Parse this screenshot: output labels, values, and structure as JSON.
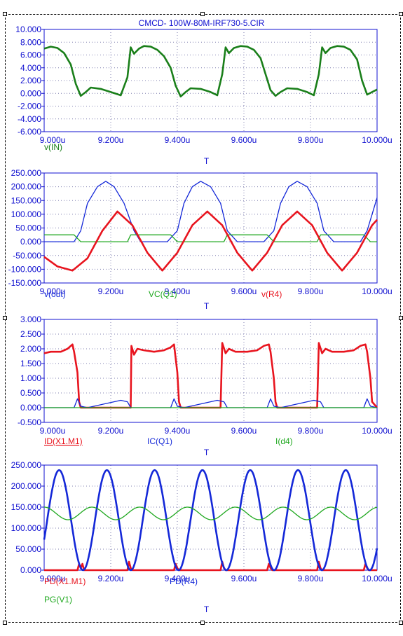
{
  "title": "CMCD- 100W-80M-IRF730-5.CIR",
  "colors": {
    "green": "#1a7f1a",
    "red": "#e8141e",
    "blue": "#1428d8",
    "lightgreen": "#1fa81f",
    "axis": "#1010d0",
    "grid": "#8080b0"
  },
  "chart_data": [
    {
      "type": "line",
      "title": "",
      "xlabel": "T",
      "ylabel": "",
      "xlim": [
        9.0,
        10.0
      ],
      "ylim": [
        -6.0,
        10.0
      ],
      "x_ticks": [
        "9.000u",
        "9.200u",
        "9.400u",
        "9.600u",
        "9.800u",
        "10.000u"
      ],
      "y_ticks": [
        "10.000",
        "8.000",
        "6.000",
        "4.000",
        "2.000",
        "0.000",
        "-2.000",
        "-4.000",
        "-6.000"
      ],
      "grid": true,
      "legend": [
        "v(IN)"
      ],
      "series": [
        {
          "name": "v(IN)",
          "color": "green",
          "x": [
            9.0,
            9.02,
            9.04,
            9.06,
            9.08,
            9.095,
            9.11,
            9.125,
            9.14,
            9.17,
            9.2,
            9.23,
            9.25,
            9.26,
            9.27,
            9.285,
            9.3,
            9.32,
            9.34,
            9.36,
            9.38,
            9.395,
            9.41,
            9.425,
            9.44,
            9.47,
            9.5,
            9.52,
            9.535,
            9.545,
            9.555,
            9.57,
            9.59,
            9.61,
            9.63,
            9.65,
            9.665,
            9.68,
            9.695,
            9.71,
            9.73,
            9.76,
            9.79,
            9.81,
            9.825,
            9.835,
            9.845,
            9.86,
            9.88,
            9.9,
            9.92,
            9.94,
            9.955,
            9.97,
            9.985,
            10.0
          ],
          "y": [
            7.0,
            7.3,
            7.1,
            6.3,
            4.5,
            1.5,
            -0.4,
            0.2,
            0.9,
            0.7,
            0.2,
            -0.3,
            2.5,
            7.2,
            6.2,
            7.0,
            7.4,
            7.3,
            6.8,
            5.8,
            4.0,
            1.2,
            -0.5,
            0.2,
            0.8,
            0.7,
            0.2,
            -0.3,
            3.0,
            7.2,
            6.3,
            7.1,
            7.4,
            7.3,
            6.8,
            5.5,
            3.0,
            0.5,
            -0.4,
            0.2,
            0.8,
            0.7,
            0.2,
            -0.3,
            3.0,
            7.2,
            6.3,
            7.1,
            7.4,
            7.3,
            6.8,
            5.3,
            2.0,
            -0.2,
            0.2,
            0.6
          ]
        }
      ]
    },
    {
      "type": "line",
      "title": "",
      "xlabel": "T",
      "ylabel": "",
      "xlim": [
        9.0,
        10.0
      ],
      "ylim": [
        -150.0,
        250.0
      ],
      "x_ticks": [
        "9.000u",
        "9.200u",
        "9.400u",
        "9.600u",
        "9.800u",
        "10.000u"
      ],
      "y_ticks": [
        "250.000",
        "200.000",
        "150.000",
        "100.000",
        "50.000",
        "0.000",
        "-50.000",
        "-100.000",
        "-150.000"
      ],
      "grid": true,
      "legend": [
        "v(out)",
        "VC(Q1)",
        "v(R4)"
      ],
      "series": [
        {
          "name": "v(out)",
          "color": "blue",
          "x": [
            9.0,
            9.03,
            9.06,
            9.09,
            9.11,
            9.13,
            9.16,
            9.185,
            9.21,
            9.24,
            9.27,
            9.29,
            9.32,
            9.35,
            9.37,
            9.4,
            9.42,
            9.445,
            9.47,
            9.5,
            9.53,
            9.55,
            9.58,
            9.61,
            9.64,
            9.66,
            9.69,
            9.71,
            9.735,
            9.76,
            9.79,
            9.82,
            9.84,
            9.87,
            9.9,
            9.93,
            9.95,
            9.97,
            9.99,
            10.0
          ],
          "y": [
            0,
            0,
            0,
            0,
            40,
            140,
            200,
            220,
            200,
            140,
            40,
            0,
            0,
            0,
            0,
            40,
            140,
            200,
            220,
            200,
            140,
            40,
            0,
            0,
            0,
            0,
            40,
            140,
            200,
            220,
            200,
            140,
            40,
            0,
            0,
            0,
            0,
            40,
            120,
            160
          ]
        },
        {
          "name": "VC(Q1)",
          "color": "lightgreen",
          "x": [
            9.0,
            9.09,
            9.11,
            9.25,
            9.26,
            9.38,
            9.4,
            9.54,
            9.55,
            9.67,
            9.69,
            9.82,
            9.83,
            9.96,
            9.98,
            10.0
          ],
          "y": [
            25,
            25,
            0,
            0,
            25,
            25,
            0,
            0,
            25,
            25,
            0,
            0,
            25,
            25,
            0,
            0
          ]
        },
        {
          "name": "v(R4)",
          "color": "red",
          "x": [
            9.0,
            9.04,
            9.085,
            9.13,
            9.175,
            9.22,
            9.265,
            9.31,
            9.355,
            9.4,
            9.445,
            9.49,
            9.535,
            9.58,
            9.625,
            9.67,
            9.715,
            9.76,
            9.805,
            9.85,
            9.895,
            9.94,
            9.985,
            10.0
          ],
          "y": [
            -55,
            -90,
            -105,
            -60,
            40,
            110,
            60,
            -40,
            -105,
            -40,
            60,
            110,
            60,
            -40,
            -105,
            -40,
            60,
            110,
            60,
            -40,
            -105,
            -40,
            60,
            80
          ]
        }
      ]
    },
    {
      "type": "line",
      "title": "",
      "xlabel": "T",
      "ylabel": "",
      "xlim": [
        9.0,
        10.0
      ],
      "ylim": [
        -0.5,
        3.0
      ],
      "x_ticks": [
        "9.000u",
        "9.200u",
        "9.400u",
        "9.600u",
        "9.800u",
        "10.000u"
      ],
      "y_ticks": [
        "3.000",
        "2.500",
        "2.000",
        "1.500",
        "1.000",
        "0.500",
        "0.000",
        "-0.500"
      ],
      "grid": true,
      "legend": [
        "ID(X1.M1)",
        "IC(Q1)",
        "I(d4)"
      ],
      "series": [
        {
          "name": "ID(X1.M1)",
          "color": "red",
          "x": [
            9.0,
            9.02,
            9.05,
            9.07,
            9.085,
            9.09,
            9.1,
            9.105,
            9.11,
            9.26,
            9.262,
            9.27,
            9.28,
            9.3,
            9.33,
            9.36,
            9.38,
            9.39,
            9.4,
            9.405,
            9.41,
            9.53,
            9.535,
            9.545,
            9.555,
            9.575,
            9.61,
            9.64,
            9.66,
            9.675,
            9.68,
            9.69,
            9.695,
            9.7,
            9.82,
            9.825,
            9.835,
            9.845,
            9.865,
            9.9,
            9.93,
            9.95,
            9.965,
            9.97,
            9.98,
            9.985,
            10.0
          ],
          "y": [
            1.85,
            1.9,
            1.9,
            2.0,
            2.15,
            1.9,
            1.2,
            0.2,
            0,
            0,
            2.1,
            1.8,
            2.0,
            1.95,
            1.9,
            1.95,
            2.05,
            2.15,
            1.2,
            0.2,
            0,
            0,
            2.2,
            1.85,
            2.0,
            1.9,
            1.9,
            1.95,
            2.1,
            2.15,
            1.9,
            1.0,
            0.2,
            0,
            0,
            2.2,
            1.85,
            2.0,
            1.9,
            1.9,
            1.95,
            2.1,
            2.15,
            1.9,
            1.0,
            0.2,
            0
          ]
        },
        {
          "name": "IC(Q1)",
          "color": "blue",
          "x": [
            9.0,
            9.09,
            9.1,
            9.11,
            9.13,
            9.23,
            9.25,
            9.26,
            9.38,
            9.39,
            9.4,
            9.42,
            9.52,
            9.54,
            9.55,
            9.67,
            9.68,
            9.69,
            9.71,
            9.81,
            9.83,
            9.84,
            9.96,
            9.97,
            9.98,
            10.0
          ],
          "y": [
            0,
            0,
            0.3,
            0.05,
            0.0,
            0.25,
            0.2,
            0,
            0,
            0.3,
            0.05,
            0.0,
            0.25,
            0.2,
            0,
            0,
            0.3,
            0.05,
            0.0,
            0.25,
            0.2,
            0,
            0,
            0.3,
            0.05,
            0.0
          ]
        },
        {
          "name": "I(d4)",
          "color": "lightgreen",
          "x": [
            9.0,
            10.0
          ],
          "y": [
            0.0,
            0.0
          ]
        }
      ]
    },
    {
      "type": "line",
      "title": "",
      "xlabel": "T",
      "ylabel": "",
      "xlim": [
        9.0,
        10.0
      ],
      "ylim": [
        0.0,
        250.0
      ],
      "x_ticks": [
        "9.000u",
        "9.200u",
        "9.400u",
        "9.600u",
        "9.800u",
        "10.000u"
      ],
      "y_ticks": [
        "250.000",
        "200.000",
        "150.000",
        "100.000",
        "50.000",
        "0.000"
      ],
      "grid": true,
      "legend": [
        "PD(X1.M1)",
        "PD(R4)",
        "PG(V1)"
      ],
      "series": [
        {
          "name": "PD(X1.M1)",
          "color": "red",
          "x": [
            9.0,
            9.1,
            9.105,
            9.11,
            9.115,
            9.12,
            9.25,
            9.255,
            9.26,
            9.265,
            9.38,
            9.39,
            9.395,
            9.4,
            9.405,
            9.53,
            9.535,
            9.54,
            9.545,
            9.66,
            9.67,
            9.675,
            9.68,
            9.685,
            9.82,
            9.825,
            9.83,
            9.835,
            9.96,
            9.965,
            9.97,
            9.975,
            10.0
          ],
          "y": [
            0,
            0,
            15,
            5,
            15,
            0,
            0,
            20,
            5,
            0,
            0,
            0,
            15,
            5,
            0,
            0,
            20,
            5,
            0,
            0,
            0,
            15,
            5,
            0,
            0,
            20,
            5,
            0,
            0,
            15,
            5,
            0,
            0
          ]
        },
        {
          "name": "PD(R4)",
          "color": "blue",
          "period": 0.1435,
          "amplitude": 119,
          "offset": 119,
          "phase_x": 9.0,
          "peak_x": 9.045
        },
        {
          "name": "PG(V1)",
          "color": "lightgreen",
          "period": 0.1435,
          "amplitude": 15,
          "offset": 135,
          "phase_x": 9.0,
          "peak_x": 9.0
        }
      ]
    }
  ]
}
